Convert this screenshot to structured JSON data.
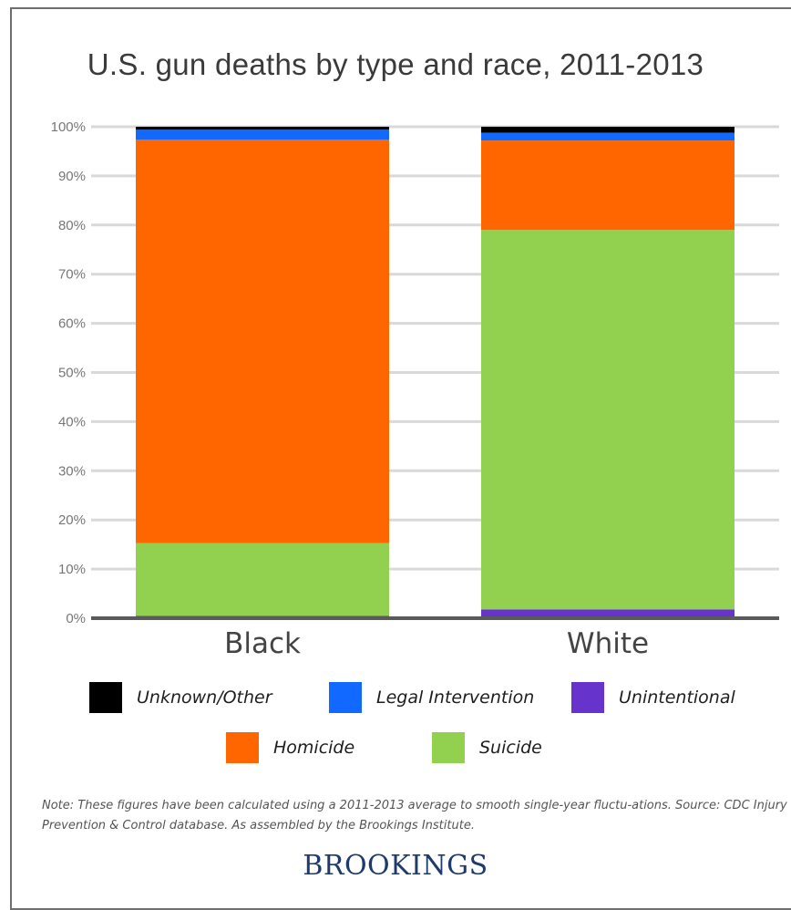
{
  "title": "U.S. gun deaths by type and race, 2011-2013",
  "colors": {
    "unknown_other": "#000000",
    "legal_intervention": "#1269ff",
    "unintentional": "#6633cc",
    "homicide": "#ff6600",
    "suicide": "#92d050",
    "gridline": "#d9d9d9",
    "axis": "#5a5a5a",
    "brand": "#1f3b6e"
  },
  "legend": [
    {
      "label": "Unknown/Other",
      "color": "#000000"
    },
    {
      "label": "Legal Intervention",
      "color": "#1269ff"
    },
    {
      "label": "Unintentional",
      "color": "#6633cc"
    },
    {
      "label": "Homicide",
      "color": "#ff6600"
    },
    {
      "label": "Suicide",
      "color": "#92d050"
    }
  ],
  "note": "Note: These figures have been calculated using a 2011-2013 average to smooth single-year fluctu-ations. Source: CDC Injury Prevention & Control database. As assembled by the Brookings Institute.",
  "logo_text": "BROOKINGS",
  "chart_data": {
    "type": "bar",
    "stacked": true,
    "title": "U.S. gun deaths by type and race, 2011-2013",
    "xlabel": "",
    "ylabel": "",
    "ylim": [
      0,
      100
    ],
    "y_ticks": [
      "0%",
      "10%",
      "20%",
      "30%",
      "40%",
      "50%",
      "60%",
      "70%",
      "80%",
      "90%",
      "100%"
    ],
    "categories": [
      "Black",
      "White"
    ],
    "grid": true,
    "legend_position": "bottom",
    "series": [
      {
        "name": "Unintentional",
        "color": "#6633cc",
        "values": [
          0.5,
          1.8
        ]
      },
      {
        "name": "Suicide",
        "color": "#92d050",
        "values": [
          14.8,
          77.2
        ]
      },
      {
        "name": "Homicide",
        "color": "#ff6600",
        "values": [
          82.1,
          18.2
        ]
      },
      {
        "name": "Legal Intervention",
        "color": "#1269ff",
        "values": [
          2.0,
          1.6
        ]
      },
      {
        "name": "Unknown/Other",
        "color": "#000000",
        "values": [
          0.6,
          1.2
        ]
      }
    ]
  }
}
